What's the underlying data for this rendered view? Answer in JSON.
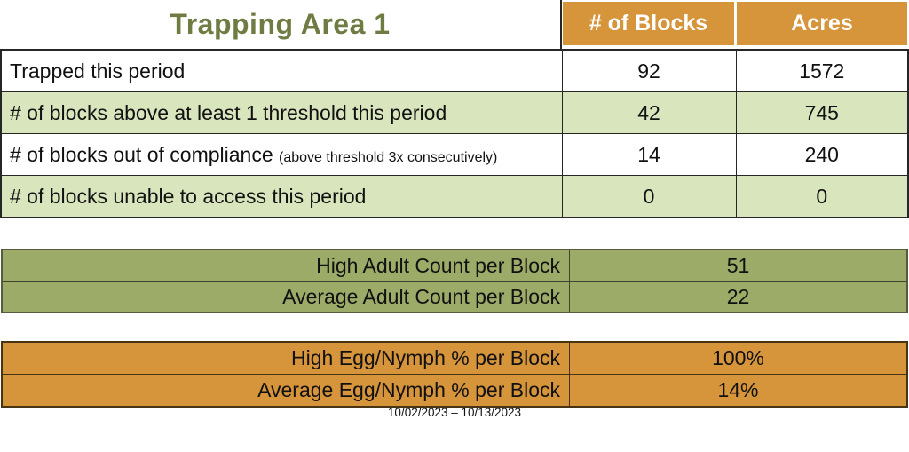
{
  "title": "Trapping Area 1",
  "date_range": "10/02/2023 – 10/13/2023",
  "colors": {
    "header_orange": "#d6943b",
    "light_green": "#d9e5bd",
    "olive_green": "#9cab68",
    "title_green": "#6e7c43",
    "header_text": "#ffffff"
  },
  "main_table": {
    "columns": [
      "# of Blocks",
      "Acres"
    ],
    "rows": [
      {
        "label": "Trapped this period",
        "blocks": "92",
        "acres": "1572"
      },
      {
        "label": "# of blocks above at least 1 threshold this period",
        "blocks": "42",
        "acres": "745"
      },
      {
        "label": "# of blocks out of compliance",
        "note": "(above threshold 3x consecutively)",
        "blocks": "14",
        "acres": "240"
      },
      {
        "label": "# of blocks unable to access this period",
        "blocks": "0",
        "acres": "0"
      }
    ]
  },
  "adult_table": {
    "rows": [
      {
        "label": "High Adult Count per Block",
        "value": "51"
      },
      {
        "label": "Average Adult Count per Block",
        "value": "22"
      }
    ]
  },
  "egg_table": {
    "rows": [
      {
        "label": "High Egg/Nymph % per Block",
        "value": "100%"
      },
      {
        "label": "Average Egg/Nymph % per Block",
        "value": "14%"
      }
    ]
  }
}
